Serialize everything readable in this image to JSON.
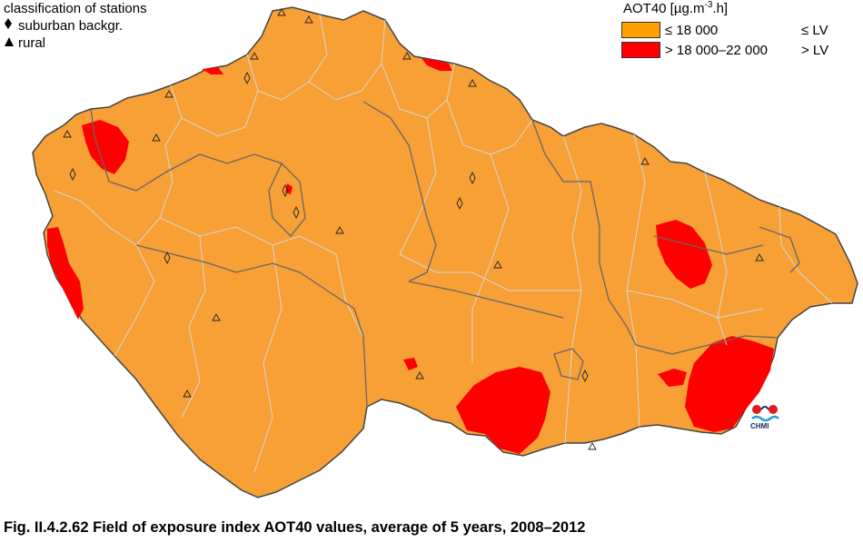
{
  "station_legend": {
    "title": "classification of stations",
    "items": [
      {
        "symbol": "diamond",
        "label": "suburban backgr."
      },
      {
        "symbol": "triangle",
        "label": "rural"
      }
    ]
  },
  "aot_legend": {
    "title_main": "AOT40 [µg.m",
    "title_sup": "-3",
    "title_end": ".h]",
    "items": [
      {
        "color": "#FFA000",
        "label": "≤ 18 000",
        "lv": "≤ LV"
      },
      {
        "color": "#FF0000",
        "label": "> 18 000–22 000",
        "lv": "> LV"
      }
    ]
  },
  "logo_text": "CHMI",
  "caption": "Fig. II.4.2.62  Field of exposure index AOT40 values, average of 5 years, 2008–2012",
  "colors": {
    "base": "#F8A037",
    "exceed": "#FF0000",
    "borders": "#C8C8C8",
    "regions": "#555555"
  }
}
